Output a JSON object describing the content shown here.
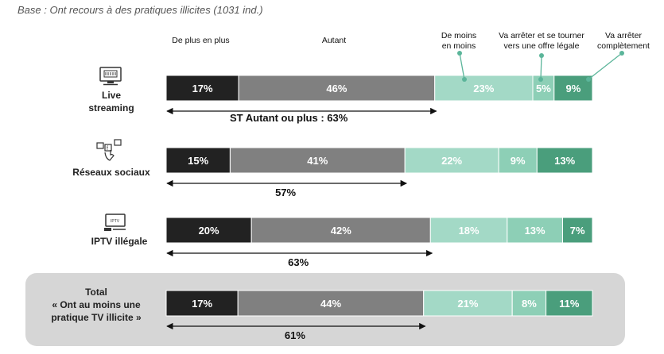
{
  "base_note": "Base : Ont recours à des pratiques illicites (1031 ind.)",
  "chart_data": {
    "type": "bar",
    "orientation": "horizontal-stacked",
    "series_names": [
      "De plus en plus",
      "Autant",
      "De moins\nen moins",
      "Va arrêter et se tourner\nvers une offre légale",
      "Va arrêter\ncomplètement"
    ],
    "series_colors": [
      "#222222",
      "#808080",
      "#a3d9c6",
      "#8dcfb6",
      "#4a9e7c"
    ],
    "rows": [
      {
        "name": "Live\nstreaming",
        "label_color": "#7dbbd8",
        "icon": "live-streaming-icon",
        "values": [
          17,
          46,
          23,
          5,
          9
        ],
        "st_label": "ST Autant ou plus : 63%"
      },
      {
        "name": "Réseaux sociaux",
        "label_color": "#f2b21e",
        "icon": "social-media-icon",
        "values": [
          15,
          41,
          22,
          9,
          13
        ],
        "st_label": "57%"
      },
      {
        "name": "IPTV illégale",
        "label_color": "#8dbb3c",
        "icon": "tv-iptv-icon",
        "values": [
          20,
          42,
          18,
          13,
          7
        ],
        "st_label": "63%"
      },
      {
        "name": "Total\n« Ont au moins une\npratique TV illicite »",
        "label_color": "#c1272d",
        "icon": "",
        "values": [
          17,
          44,
          21,
          8,
          11
        ],
        "st_label": "61%"
      }
    ]
  }
}
